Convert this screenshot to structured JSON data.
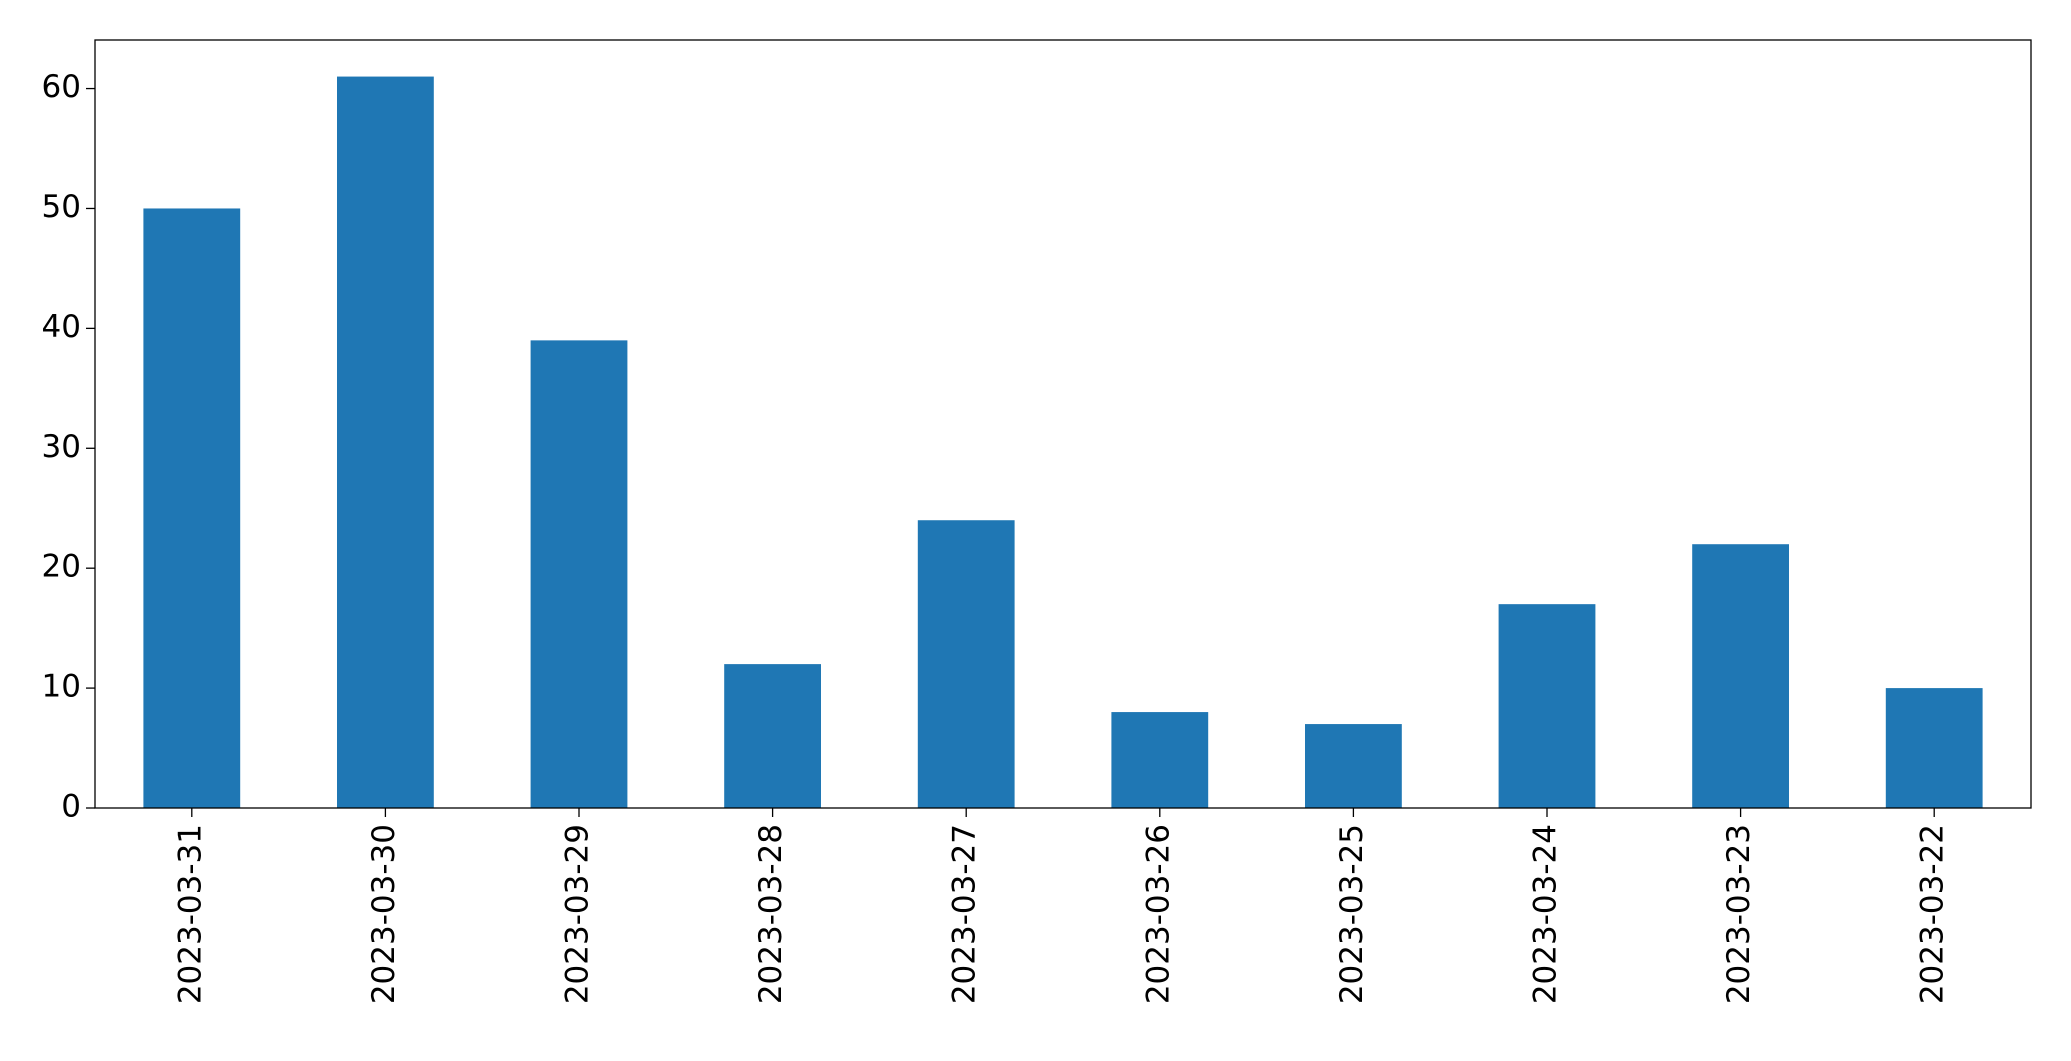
{
  "chart_data": {
    "type": "bar",
    "categories": [
      "2023-03-31",
      "2023-03-30",
      "2023-03-29",
      "2023-03-28",
      "2023-03-27",
      "2023-03-26",
      "2023-03-25",
      "2023-03-24",
      "2023-03-23",
      "2023-03-22"
    ],
    "values": [
      50,
      61,
      39,
      12,
      24,
      8,
      7,
      17,
      22,
      10
    ],
    "color": "#1f77b4",
    "ylim": [
      0,
      64.05
    ],
    "yticks": [
      0,
      10,
      20,
      30,
      40,
      50,
      60
    ],
    "grid": false
  }
}
